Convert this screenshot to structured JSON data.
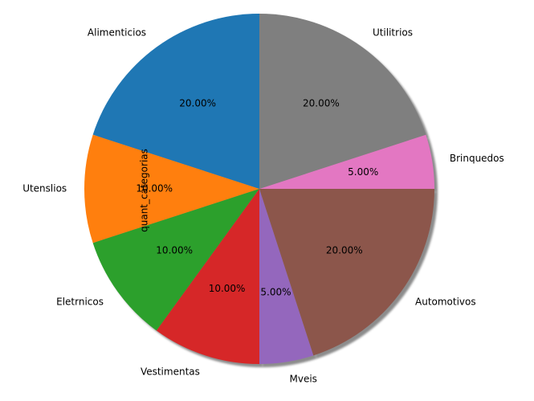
{
  "chart_data": {
    "type": "pie",
    "ylabel": "quant_categorias",
    "title": "",
    "shadow": true,
    "start_angle_deg": 90,
    "direction": "counterclockwise",
    "slices": [
      {
        "label": "Alimenticios",
        "value": 20,
        "pct_text": "20.00%",
        "color": "#1f77b4"
      },
      {
        "label": "Utenslios",
        "value": 10,
        "pct_text": "10.00%",
        "color": "#ff7f0e"
      },
      {
        "label": "Eletrnicos",
        "value": 10,
        "pct_text": "10.00%",
        "color": "#2ca02c"
      },
      {
        "label": "Vestimentas",
        "value": 10,
        "pct_text": "10.00%",
        "color": "#d62728"
      },
      {
        "label": "Mveis",
        "value": 5,
        "pct_text": "5.00%",
        "color": "#9467bd"
      },
      {
        "label": "Automotivos",
        "value": 20,
        "pct_text": "20.00%",
        "color": "#8c564b"
      },
      {
        "label": "Brinquedos",
        "value": 5,
        "pct_text": "5.00%",
        "color": "#e377c2"
      },
      {
        "label": "Utilitrios",
        "value": 20,
        "pct_text": "20.00%",
        "color": "#7f7f7f"
      }
    ]
  }
}
